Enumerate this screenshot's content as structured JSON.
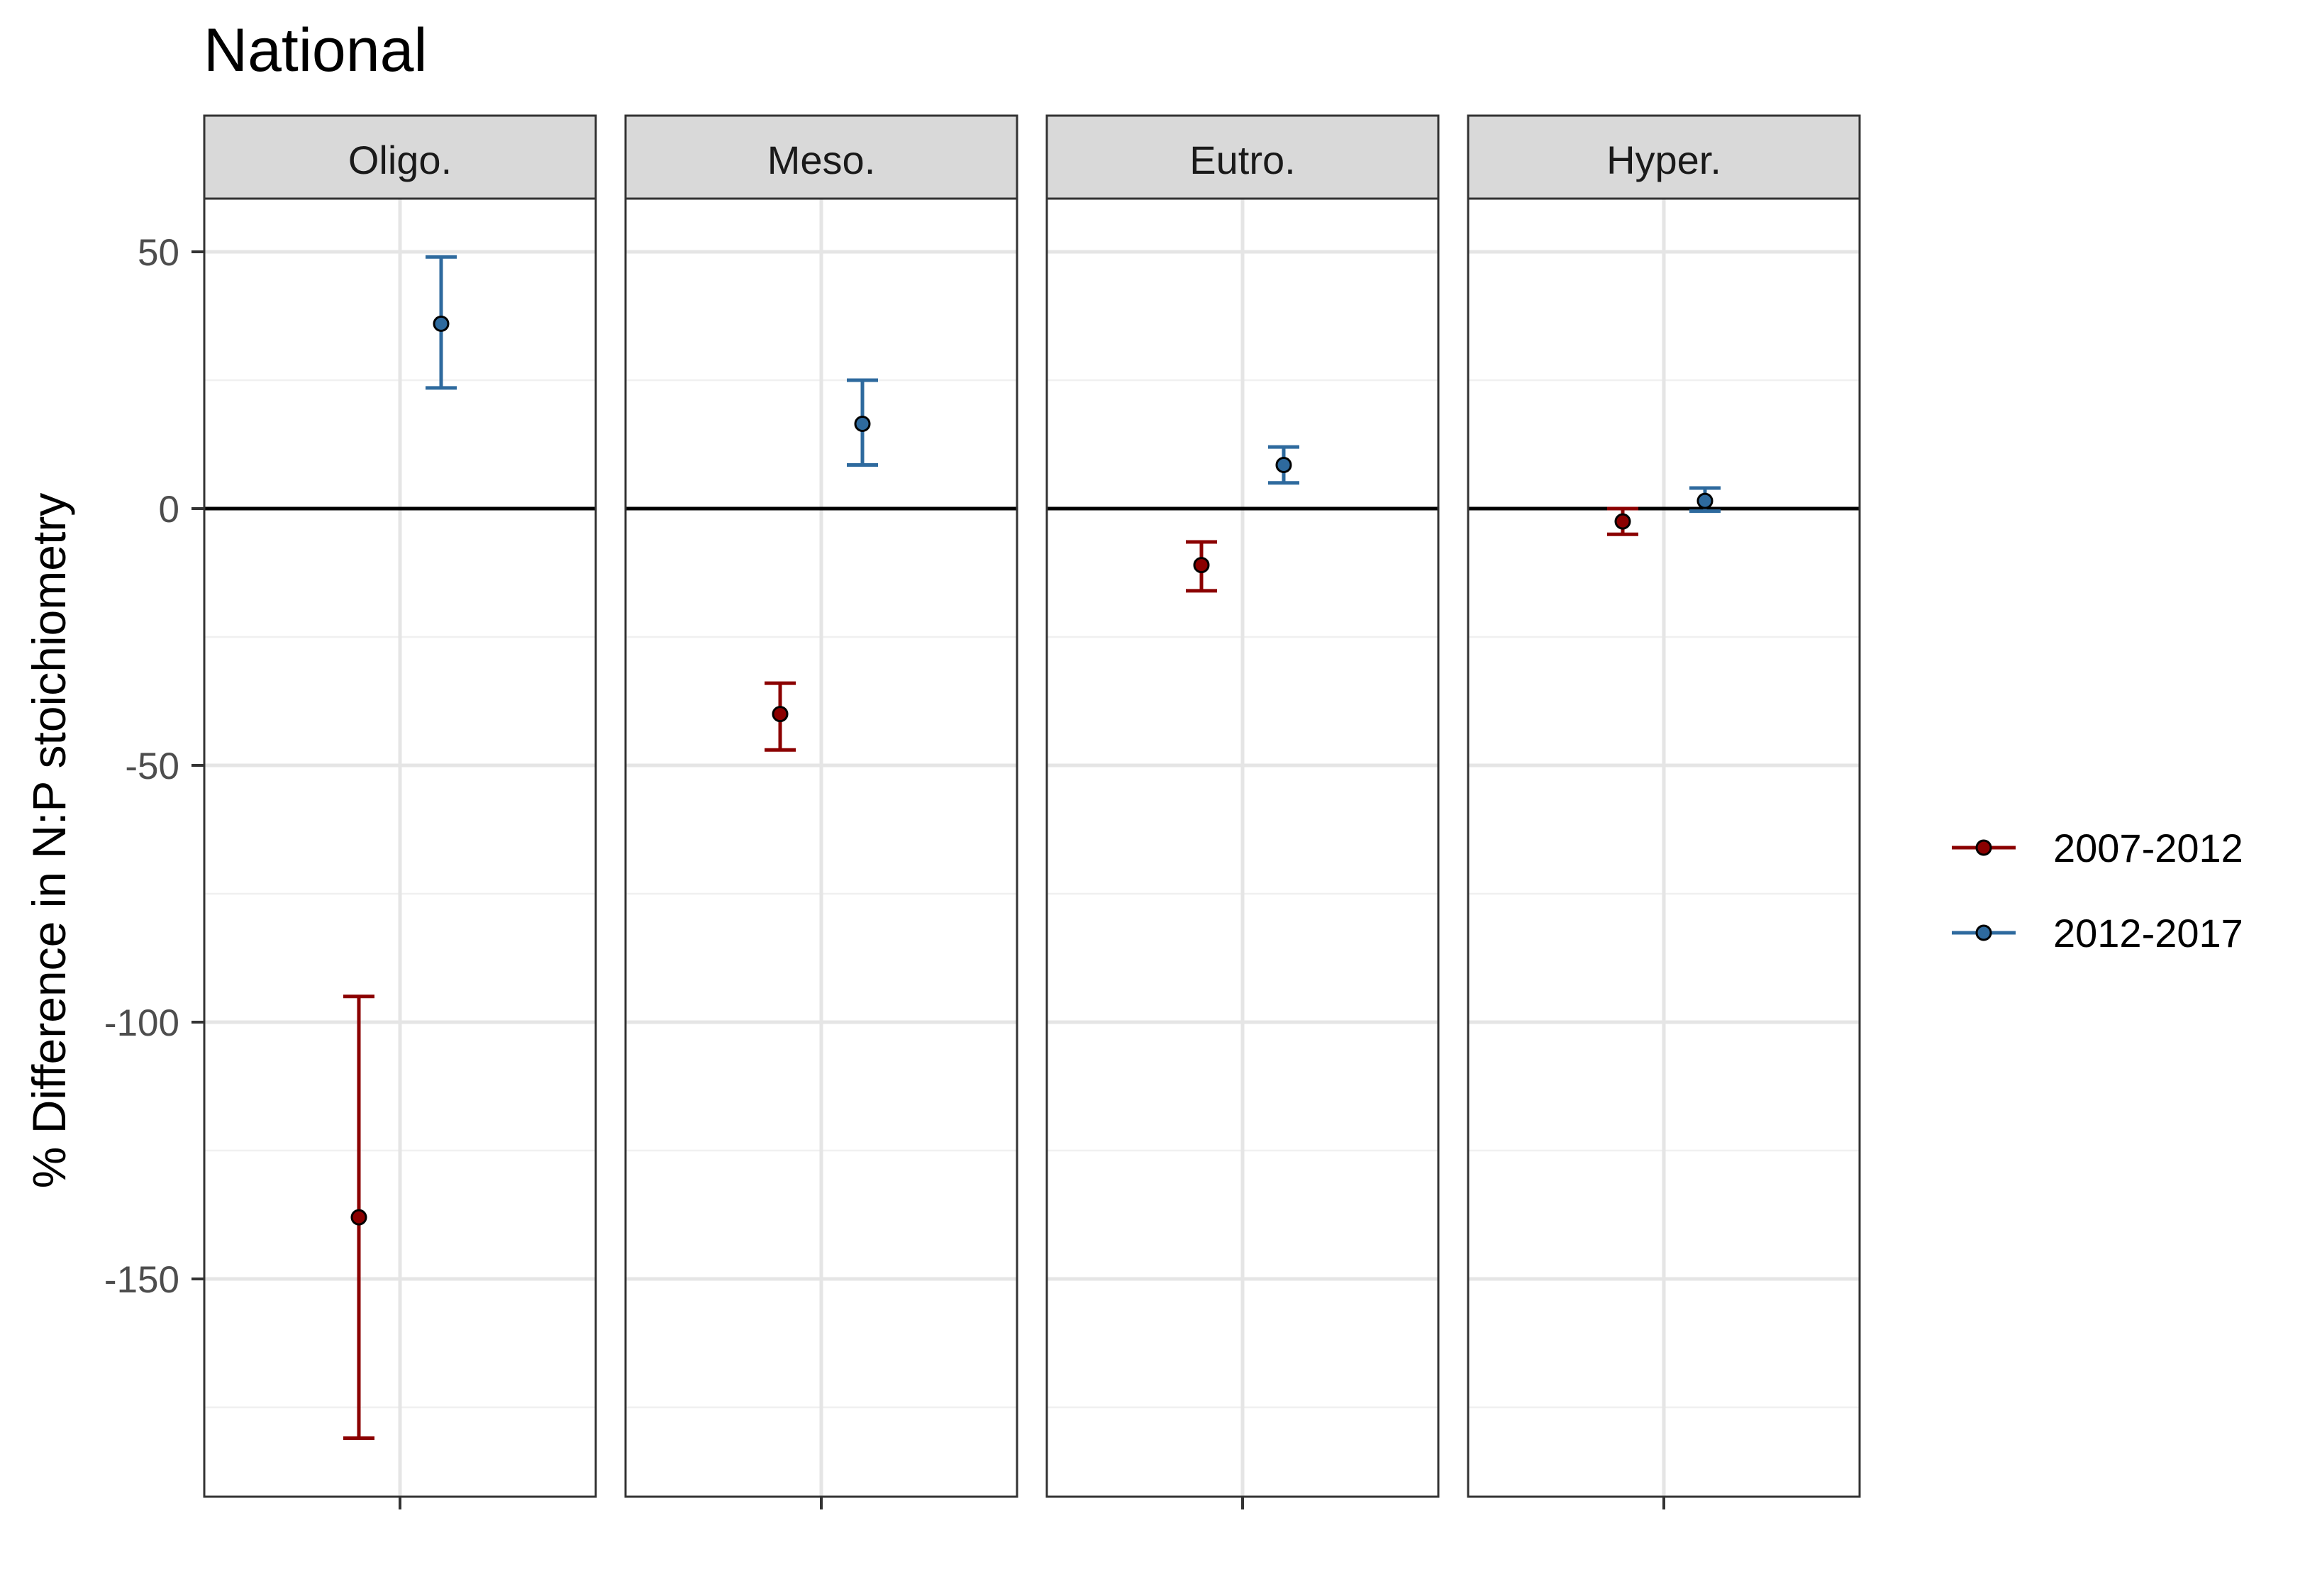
{
  "chart_data": {
    "type": "errorbar",
    "title": "National",
    "ylabel": "% Difference in N:P stoichiometry",
    "xlabel": "",
    "ylim": [
      -192,
      60
    ],
    "yticks": [
      50,
      0,
      -50,
      -100,
      -150
    ],
    "ytick_labels": [
      "50",
      "0",
      "-50",
      "-100",
      "-150"
    ],
    "reference_line": 0,
    "grid": true,
    "legend_position": "right",
    "facets": [
      "Oligo.",
      "Meso.",
      "Eutro.",
      "Hyper."
    ],
    "series": [
      {
        "name": "2007-2012",
        "color": "#8B0000",
        "points": [
          {
            "facet": "Oligo.",
            "y": -138,
            "low": -181,
            "high": -95
          },
          {
            "facet": "Meso.",
            "y": -40,
            "low": -47,
            "high": -34
          },
          {
            "facet": "Eutro.",
            "y": -11,
            "low": -16,
            "high": -6.5
          },
          {
            "facet": "Hyper.",
            "y": -2.5,
            "low": -5,
            "high": 0
          }
        ]
      },
      {
        "name": "2012-2017",
        "color": "#2E6A9E",
        "points": [
          {
            "facet": "Oligo.",
            "y": 36,
            "low": 23.5,
            "high": 49
          },
          {
            "facet": "Meso.",
            "y": 16.5,
            "low": 8.5,
            "high": 25
          },
          {
            "facet": "Eutro.",
            "y": 8.5,
            "low": 5,
            "high": 12
          },
          {
            "facet": "Hyper.",
            "y": 1.5,
            "low": -0.5,
            "high": 4
          }
        ]
      }
    ]
  }
}
